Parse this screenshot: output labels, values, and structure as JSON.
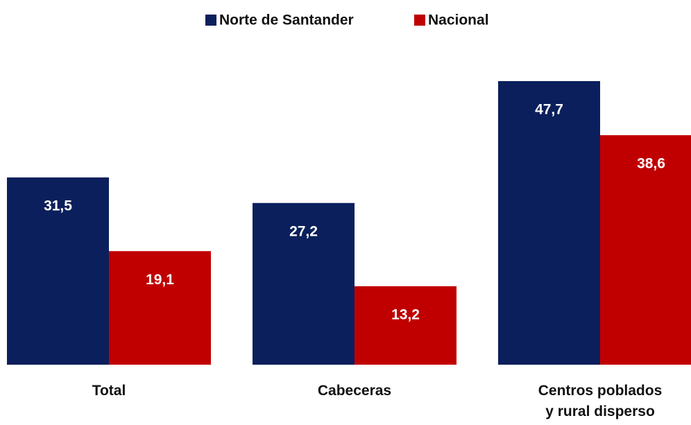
{
  "chart_data": {
    "type": "bar",
    "categories": [
      "Total",
      "Cabeceras",
      "Centros poblados\ny rural disperso"
    ],
    "series": [
      {
        "name": "Norte de Santander",
        "color": "#0b1f5c",
        "values": [
          31.5,
          27.2,
          47.7
        ],
        "value_labels": [
          "31,5",
          "27,2",
          "47,7"
        ]
      },
      {
        "name": "Nacional",
        "color": "#c00000",
        "values": [
          19.1,
          13.2,
          38.6
        ],
        "value_labels": [
          "19,1",
          "13,2",
          "38,6"
        ]
      }
    ],
    "legend": "top"
  }
}
